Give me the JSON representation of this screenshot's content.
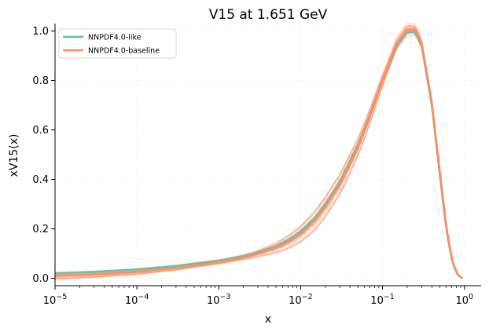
{
  "chart_data": {
    "type": "line",
    "title": "V15 at 1.651 GeV",
    "xlabel": "x",
    "ylabel": "xV15(x)",
    "xscale": "log",
    "xlim": [
      1e-05,
      1.6
    ],
    "ylim": [
      -0.03,
      1.03
    ],
    "grid": true,
    "legend_position": "top-left",
    "x_ticks": [
      {
        "value": 1e-05,
        "base": "10",
        "exp": "−5"
      },
      {
        "value": 0.0001,
        "base": "10",
        "exp": "−4"
      },
      {
        "value": 0.001,
        "base": "10",
        "exp": "−3"
      },
      {
        "value": 0.01,
        "base": "10",
        "exp": "−2"
      },
      {
        "value": 0.1,
        "base": "10",
        "exp": "−1"
      },
      {
        "value": 1,
        "base": "10",
        "exp": "0"
      }
    ],
    "y_ticks": [
      {
        "value": 0.0,
        "label": "0.0"
      },
      {
        "value": 0.2,
        "label": "0.2"
      },
      {
        "value": 0.4,
        "label": "0.4"
      },
      {
        "value": 0.6,
        "label": "0.6"
      },
      {
        "value": 0.8,
        "label": "0.8"
      },
      {
        "value": 1.0,
        "label": "1.0"
      }
    ],
    "series": [
      {
        "name": "NNPDF4.0-like",
        "color": "#66c2a5",
        "points": [
          [
            1e-05,
            0.02
          ],
          [
            3e-05,
            0.026
          ],
          [
            0.0001,
            0.036
          ],
          [
            0.0003,
            0.05
          ],
          [
            0.001,
            0.072
          ],
          [
            0.002,
            0.09
          ],
          [
            0.003,
            0.105
          ],
          [
            0.005,
            0.13
          ],
          [
            0.007,
            0.155
          ],
          [
            0.01,
            0.19
          ],
          [
            0.015,
            0.245
          ],
          [
            0.02,
            0.3
          ],
          [
            0.03,
            0.39
          ],
          [
            0.05,
            0.54
          ],
          [
            0.07,
            0.66
          ],
          [
            0.1,
            0.8
          ],
          [
            0.15,
            0.94
          ],
          [
            0.2,
            0.995
          ],
          [
            0.25,
            0.995
          ],
          [
            0.3,
            0.94
          ],
          [
            0.4,
            0.7
          ],
          [
            0.5,
            0.42
          ],
          [
            0.6,
            0.2
          ],
          [
            0.7,
            0.075
          ],
          [
            0.8,
            0.02
          ],
          [
            0.9,
            0.004
          ],
          [
            0.95,
            0.001
          ]
        ]
      },
      {
        "name": "NNPDF4.0-baseline",
        "color": "#fc8d62",
        "points": [
          [
            1e-05,
            0.01
          ],
          [
            3e-05,
            0.016
          ],
          [
            0.0001,
            0.026
          ],
          [
            0.0003,
            0.042
          ],
          [
            0.001,
            0.066
          ],
          [
            0.002,
            0.085
          ],
          [
            0.003,
            0.1
          ],
          [
            0.005,
            0.124
          ],
          [
            0.007,
            0.147
          ],
          [
            0.01,
            0.18
          ],
          [
            0.015,
            0.235
          ],
          [
            0.02,
            0.29
          ],
          [
            0.03,
            0.38
          ],
          [
            0.05,
            0.53
          ],
          [
            0.07,
            0.655
          ],
          [
            0.1,
            0.8
          ],
          [
            0.15,
            0.95
          ],
          [
            0.2,
            1.005
          ],
          [
            0.25,
            1.005
          ],
          [
            0.3,
            0.95
          ],
          [
            0.4,
            0.71
          ],
          [
            0.5,
            0.43
          ],
          [
            0.6,
            0.21
          ],
          [
            0.7,
            0.08
          ],
          [
            0.8,
            0.022
          ],
          [
            0.9,
            0.005
          ],
          [
            0.95,
            0.001
          ]
        ]
      }
    ]
  }
}
